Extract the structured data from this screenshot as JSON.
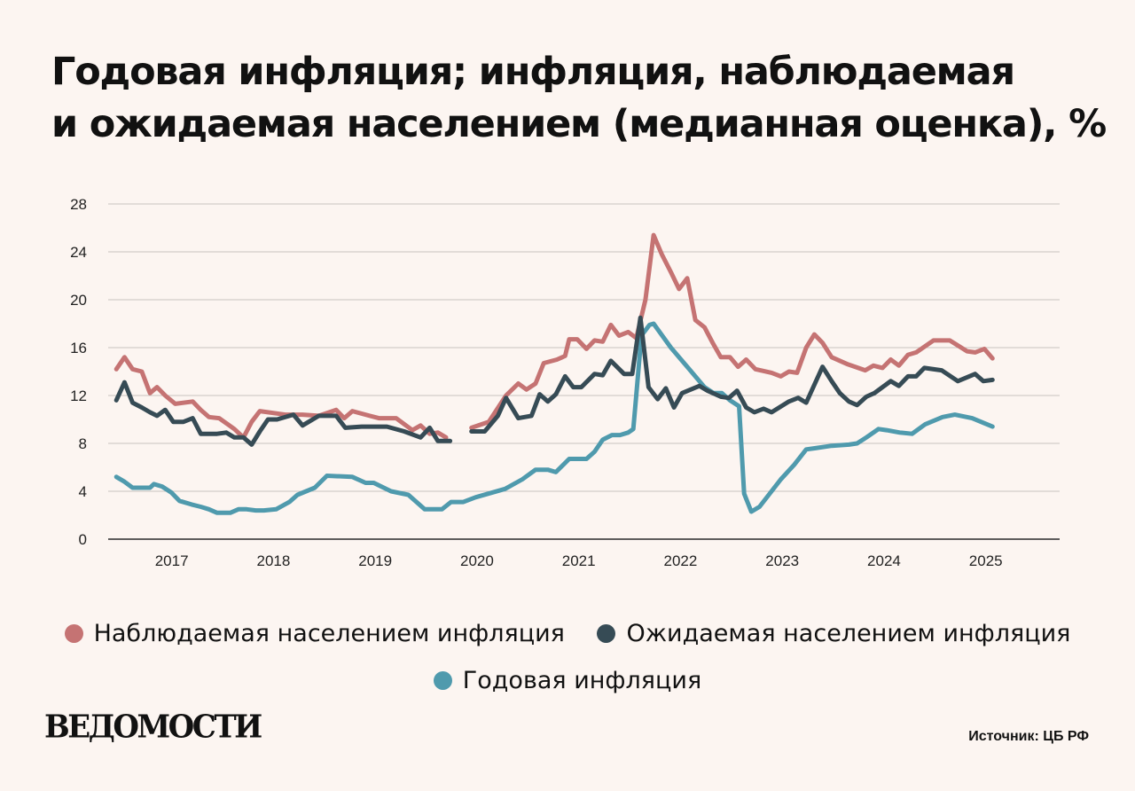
{
  "header": {
    "title_line1": "Годовая инфляция; инфляция, наблюдаемая",
    "title_line2": "и ожидаемая населением (медианная оценка), %"
  },
  "footer": {
    "logo": "ВЕДОМОСТИ",
    "source": "Источник: ЦБ РФ"
  },
  "colors": {
    "observed": "#c57373",
    "expected": "#364b55",
    "annual": "#4f9aad",
    "grid": "#c8c2bf",
    "background": "#fcf5f1"
  },
  "chart_data": {
    "type": "line",
    "title": "Годовая инфляция; инфляция, наблюдаемая и ожидаемая населением (медианная оценка), %",
    "xlabel": "",
    "ylabel": "",
    "ylim": [
      0,
      28
    ],
    "xlim": [
      2016.55,
      2025.9
    ],
    "yticks": [
      0,
      4,
      8,
      12,
      16,
      20,
      24,
      28
    ],
    "xticks": [
      {
        "label": "2017",
        "x": 2017.0
      },
      {
        "label": "2018",
        "x": 2018.0
      },
      {
        "label": "2019",
        "x": 2019.0
      },
      {
        "label": "2020",
        "x": 2020.0
      },
      {
        "label": "2021",
        "x": 2021.0
      },
      {
        "label": "2022",
        "x": 2022.0
      },
      {
        "label": "2023",
        "x": 2023.0
      },
      {
        "label": "2024",
        "x": 2024.0
      },
      {
        "label": "2025",
        "x": 2025.0
      }
    ],
    "grid": true,
    "legend_position": "bottom",
    "series": [
      {
        "name": "Наблюдаемая населением инфляция",
        "color_key": "observed",
        "segments": [
          [
            [
              2016.63,
              14.2
            ],
            [
              2016.71,
              15.2
            ],
            [
              2016.79,
              14.2
            ],
            [
              2016.88,
              14.0
            ],
            [
              2016.96,
              12.2
            ],
            [
              2017.03,
              12.7
            ],
            [
              2017.11,
              12.0
            ],
            [
              2017.21,
              11.3
            ],
            [
              2017.38,
              11.5
            ],
            [
              2017.46,
              10.8
            ],
            [
              2017.54,
              10.2
            ],
            [
              2017.64,
              10.1
            ],
            [
              2017.79,
              9.2
            ],
            [
              2017.88,
              8.5
            ],
            [
              2017.96,
              9.8
            ],
            [
              2018.04,
              10.7
            ],
            [
              2018.21,
              10.5
            ],
            [
              2018.29,
              10.4
            ],
            [
              2018.46,
              10.4
            ],
            [
              2018.62,
              10.3
            ],
            [
              2018.79,
              10.8
            ],
            [
              2018.87,
              10.1
            ],
            [
              2018.95,
              10.7
            ],
            [
              2019.12,
              10.3
            ],
            [
              2019.21,
              10.1
            ],
            [
              2019.38,
              10.1
            ],
            [
              2019.54,
              9.1
            ],
            [
              2019.62,
              9.5
            ],
            [
              2019.71,
              8.8
            ],
            [
              2019.79,
              8.9
            ],
            [
              2019.87,
              8.5
            ]
          ],
          [
            [
              2020.12,
              9.3
            ],
            [
              2020.29,
              9.8
            ],
            [
              2020.46,
              12.0
            ],
            [
              2020.58,
              13.0
            ],
            [
              2020.66,
              12.5
            ],
            [
              2020.75,
              13.0
            ],
            [
              2020.83,
              14.7
            ],
            [
              2020.96,
              15.0
            ],
            [
              2021.04,
              15.3
            ],
            [
              2021.08,
              16.7
            ],
            [
              2021.16,
              16.7
            ],
            [
              2021.25,
              15.9
            ],
            [
              2021.33,
              16.6
            ],
            [
              2021.41,
              16.5
            ],
            [
              2021.49,
              17.9
            ],
            [
              2021.57,
              17.0
            ],
            [
              2021.66,
              17.3
            ],
            [
              2021.74,
              16.8
            ],
            [
              2021.83,
              20.0
            ],
            [
              2021.91,
              25.4
            ],
            [
              2021.99,
              23.8
            ],
            [
              2022.08,
              22.3
            ],
            [
              2022.16,
              20.9
            ],
            [
              2022.24,
              21.8
            ],
            [
              2022.32,
              18.3
            ],
            [
              2022.41,
              17.7
            ],
            [
              2022.49,
              16.4
            ],
            [
              2022.57,
              15.2
            ],
            [
              2022.66,
              15.2
            ],
            [
              2022.74,
              14.4
            ],
            [
              2022.82,
              15.0
            ],
            [
              2022.91,
              14.2
            ],
            [
              2023.07,
              13.9
            ],
            [
              2023.16,
              13.6
            ],
            [
              2023.24,
              14.0
            ],
            [
              2023.32,
              13.9
            ],
            [
              2023.41,
              16.0
            ],
            [
              2023.49,
              17.1
            ],
            [
              2023.57,
              16.4
            ],
            [
              2023.66,
              15.2
            ],
            [
              2023.82,
              14.6
            ],
            [
              2023.99,
              14.1
            ],
            [
              2024.07,
              14.5
            ],
            [
              2024.16,
              14.3
            ],
            [
              2024.24,
              15.0
            ],
            [
              2024.32,
              14.5
            ],
            [
              2024.41,
              15.4
            ],
            [
              2024.49,
              15.6
            ],
            [
              2024.66,
              16.6
            ],
            [
              2024.82,
              16.6
            ],
            [
              2024.99,
              15.7
            ],
            [
              2025.07,
              15.6
            ],
            [
              2025.16,
              15.9
            ],
            [
              2025.24,
              15.1
            ]
          ]
        ]
      },
      {
        "name": "Ожидаемая населением инфляция",
        "color_key": "expected",
        "segments": [
          [
            [
              2016.63,
              11.6
            ],
            [
              2016.71,
              13.1
            ],
            [
              2016.79,
              11.4
            ],
            [
              2016.88,
              11.0
            ],
            [
              2016.96,
              10.6
            ],
            [
              2017.03,
              10.3
            ],
            [
              2017.11,
              10.8
            ],
            [
              2017.19,
              9.8
            ],
            [
              2017.29,
              9.8
            ],
            [
              2017.38,
              10.1
            ],
            [
              2017.46,
              8.8
            ],
            [
              2017.62,
              8.8
            ],
            [
              2017.71,
              8.9
            ],
            [
              2017.79,
              8.5
            ],
            [
              2017.88,
              8.5
            ],
            [
              2017.96,
              7.9
            ],
            [
              2018.04,
              9.0
            ],
            [
              2018.12,
              10.0
            ],
            [
              2018.21,
              10.0
            ],
            [
              2018.37,
              10.4
            ],
            [
              2018.46,
              9.5
            ],
            [
              2018.62,
              10.3
            ],
            [
              2018.79,
              10.3
            ],
            [
              2018.88,
              9.3
            ],
            [
              2019.04,
              9.4
            ],
            [
              2019.12,
              9.4
            ],
            [
              2019.29,
              9.4
            ],
            [
              2019.46,
              9.0
            ],
            [
              2019.62,
              8.5
            ],
            [
              2019.71,
              9.3
            ],
            [
              2019.79,
              8.2
            ],
            [
              2019.87,
              8.2
            ],
            [
              2019.91,
              8.2
            ]
          ],
          [
            [
              2020.12,
              9.0
            ],
            [
              2020.25,
              9.0
            ],
            [
              2020.38,
              10.3
            ],
            [
              2020.46,
              11.8
            ],
            [
              2020.58,
              10.1
            ],
            [
              2020.71,
              10.3
            ],
            [
              2020.79,
              12.1
            ],
            [
              2020.87,
              11.5
            ],
            [
              2020.95,
              12.1
            ],
            [
              2021.04,
              13.6
            ],
            [
              2021.12,
              12.7
            ],
            [
              2021.2,
              12.7
            ],
            [
              2021.33,
              13.8
            ],
            [
              2021.41,
              13.7
            ],
            [
              2021.49,
              14.9
            ],
            [
              2021.62,
              13.8
            ],
            [
              2021.7,
              13.8
            ],
            [
              2021.78,
              18.5
            ],
            [
              2021.86,
              12.7
            ],
            [
              2021.95,
              11.7
            ],
            [
              2022.03,
              12.6
            ],
            [
              2022.11,
              11.0
            ],
            [
              2022.19,
              12.2
            ],
            [
              2022.36,
              12.8
            ],
            [
              2022.44,
              12.4
            ],
            [
              2022.57,
              11.9
            ],
            [
              2022.65,
              11.8
            ],
            [
              2022.73,
              12.4
            ],
            [
              2022.82,
              11.0
            ],
            [
              2022.9,
              10.6
            ],
            [
              2022.99,
              10.9
            ],
            [
              2023.07,
              10.6
            ],
            [
              2023.24,
              11.5
            ],
            [
              2023.33,
              11.8
            ],
            [
              2023.41,
              11.4
            ],
            [
              2023.57,
              14.4
            ],
            [
              2023.66,
              13.2
            ],
            [
              2023.74,
              12.2
            ],
            [
              2023.83,
              11.5
            ],
            [
              2023.91,
              11.2
            ],
            [
              2024.0,
              11.9
            ],
            [
              2024.08,
              12.2
            ],
            [
              2024.24,
              13.2
            ],
            [
              2024.32,
              12.8
            ],
            [
              2024.41,
              13.6
            ],
            [
              2024.49,
              13.6
            ],
            [
              2024.57,
              14.3
            ],
            [
              2024.74,
              14.1
            ],
            [
              2024.9,
              13.2
            ],
            [
              2025.07,
              13.8
            ],
            [
              2025.15,
              13.2
            ],
            [
              2025.24,
              13.3
            ]
          ]
        ]
      },
      {
        "name": "Годовая инфляция",
        "color_key": "annual",
        "segments": [
          [
            [
              2016.63,
              5.2
            ],
            [
              2016.71,
              4.8
            ],
            [
              2016.79,
              4.3
            ],
            [
              2016.88,
              4.3
            ],
            [
              2016.96,
              4.3
            ],
            [
              2017.0,
              4.6
            ],
            [
              2017.08,
              4.4
            ],
            [
              2017.17,
              3.9
            ],
            [
              2017.25,
              3.2
            ],
            [
              2017.37,
              2.9
            ],
            [
              2017.46,
              2.7
            ],
            [
              2017.54,
              2.5
            ],
            [
              2017.62,
              2.2
            ],
            [
              2017.75,
              2.2
            ],
            [
              2017.83,
              2.5
            ],
            [
              2017.91,
              2.5
            ],
            [
              2018.0,
              2.4
            ],
            [
              2018.08,
              2.4
            ],
            [
              2018.2,
              2.5
            ],
            [
              2018.33,
              3.1
            ],
            [
              2018.41,
              3.7
            ],
            [
              2018.58,
              4.3
            ],
            [
              2018.7,
              5.3
            ],
            [
              2018.95,
              5.2
            ],
            [
              2019.08,
              4.7
            ],
            [
              2019.16,
              4.7
            ],
            [
              2019.33,
              4.0
            ],
            [
              2019.5,
              3.7
            ],
            [
              2019.58,
              3.1
            ],
            [
              2019.66,
              2.5
            ],
            [
              2019.83,
              2.5
            ],
            [
              2019.92,
              3.1
            ],
            [
              2020.04,
              3.1
            ],
            [
              2020.16,
              3.5
            ],
            [
              2020.45,
              4.2
            ],
            [
              2020.62,
              5.0
            ],
            [
              2020.75,
              5.8
            ],
            [
              2020.87,
              5.8
            ],
            [
              2020.95,
              5.6
            ],
            [
              2021.08,
              6.7
            ],
            [
              2021.25,
              6.7
            ],
            [
              2021.33,
              7.3
            ],
            [
              2021.41,
              8.3
            ],
            [
              2021.5,
              8.7
            ],
            [
              2021.58,
              8.7
            ],
            [
              2021.66,
              8.9
            ],
            [
              2021.71,
              9.2
            ],
            [
              2021.75,
              13.0
            ],
            [
              2021.79,
              17.0
            ],
            [
              2021.87,
              17.9
            ],
            [
              2021.91,
              18.0
            ],
            [
              2022.08,
              16.0
            ],
            [
              2022.25,
              14.3
            ],
            [
              2022.41,
              12.7
            ],
            [
              2022.5,
              12.2
            ],
            [
              2022.58,
              12.2
            ],
            [
              2022.66,
              11.6
            ],
            [
              2022.75,
              11.1
            ],
            [
              2022.8,
              3.8
            ],
            [
              2022.87,
              2.3
            ],
            [
              2022.95,
              2.7
            ],
            [
              2023.16,
              5.0
            ],
            [
              2023.29,
              6.2
            ],
            [
              2023.41,
              7.5
            ],
            [
              2023.5,
              7.6
            ],
            [
              2023.66,
              7.8
            ],
            [
              2023.83,
              7.9
            ],
            [
              2023.91,
              8.0
            ],
            [
              2024.0,
              8.5
            ],
            [
              2024.12,
              9.2
            ],
            [
              2024.2,
              9.1
            ],
            [
              2024.33,
              8.9
            ],
            [
              2024.45,
              8.8
            ],
            [
              2024.58,
              9.6
            ],
            [
              2024.75,
              10.2
            ],
            [
              2024.87,
              10.4
            ],
            [
              2025.04,
              10.1
            ],
            [
              2025.24,
              9.4
            ]
          ]
        ]
      }
    ]
  }
}
